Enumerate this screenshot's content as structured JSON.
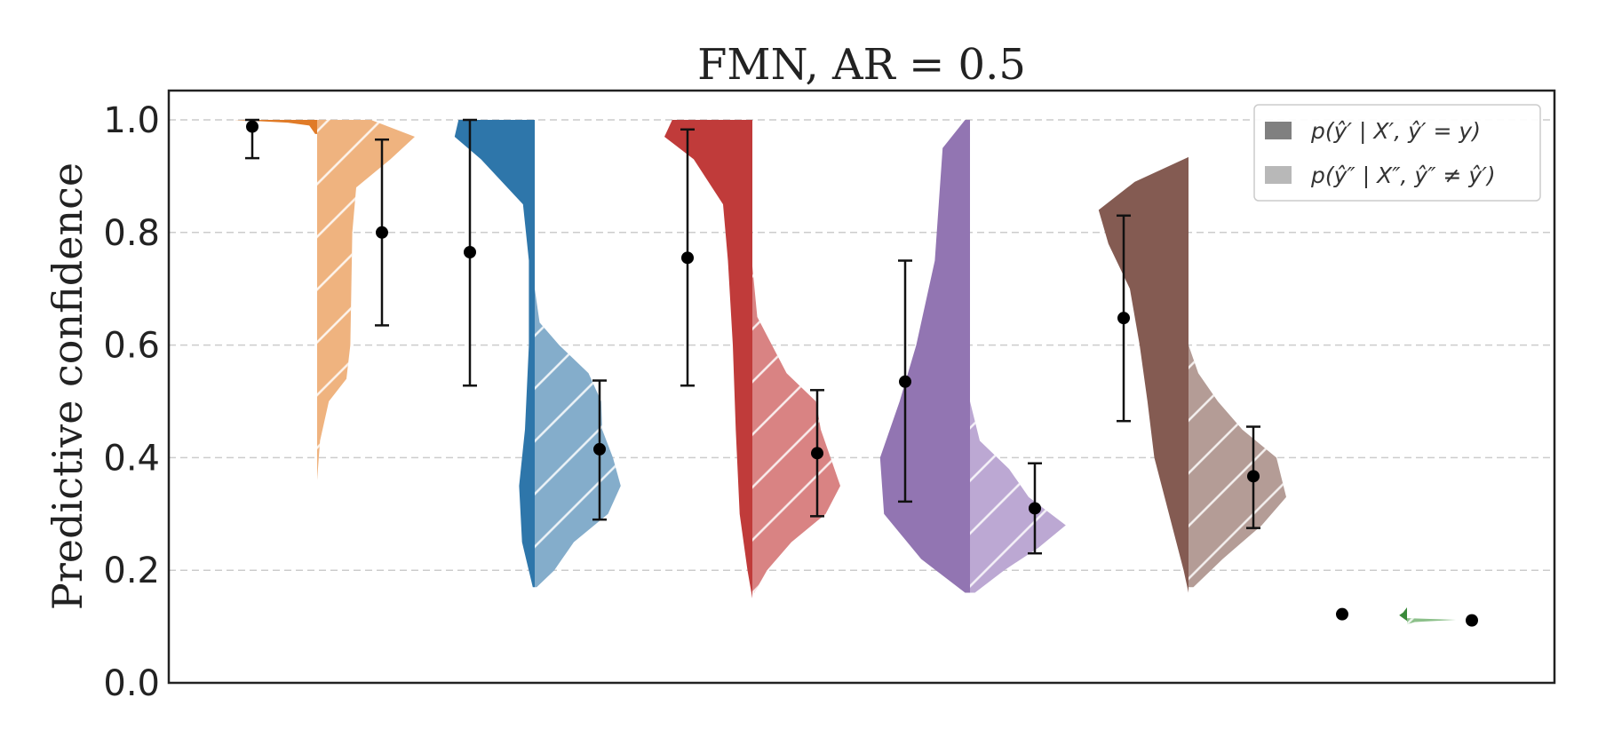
{
  "chart_data": {
    "type": "violin",
    "title": "FMN, AR = 0.5",
    "xlabel": "",
    "ylabel": "Predictive confidence",
    "ylim": [
      0.0,
      1.05
    ],
    "yticks": [
      0.0,
      0.2,
      0.4,
      0.6,
      0.8,
      1.0
    ],
    "ytick_labels": [
      "0.0",
      "0.2",
      "0.4",
      "0.6",
      "0.8",
      "1.0"
    ],
    "grid": "horizontal-dashed",
    "legend_position": "top-right",
    "legend": [
      {
        "label": "p(ŷ′ | X′, ŷ′ = y)",
        "color": "#808080"
      },
      {
        "label": "p(ŷ″ | X″, ŷ″ ≠ ŷ′)",
        "color": "#b8b8b8"
      }
    ],
    "groups": [
      {
        "color": "#e07b28",
        "light_color": "#efb37f",
        "correct": {
          "mean": 0.988,
          "low": 0.932,
          "high": 1.0,
          "density": [
            [
              1.0,
              0.85
            ],
            [
              0.995,
              0.3
            ],
            [
              0.99,
              0.08
            ],
            [
              0.975,
              0.02
            ]
          ]
        },
        "adversarial": {
          "mean": 0.8,
          "low": 0.635,
          "high": 0.965,
          "density": [
            [
              1.0,
              0.55
            ],
            [
              0.97,
              1.0
            ],
            [
              0.93,
              0.75
            ],
            [
              0.88,
              0.4
            ],
            [
              0.8,
              0.36
            ],
            [
              0.7,
              0.35
            ],
            [
              0.6,
              0.34
            ],
            [
              0.54,
              0.3
            ],
            [
              0.5,
              0.12
            ],
            [
              0.43,
              0.03
            ],
            [
              0.36,
              0.0
            ]
          ]
        }
      },
      {
        "color": "#2e76aa",
        "light_color": "#84adcb",
        "correct": {
          "mean": 0.765,
          "low": 0.528,
          "high": 1.0,
          "density": [
            [
              1.0,
              0.78
            ],
            [
              0.97,
              0.82
            ],
            [
              0.93,
              0.55
            ],
            [
              0.85,
              0.12
            ],
            [
              0.75,
              0.06
            ],
            [
              0.6,
              0.06
            ],
            [
              0.45,
              0.1
            ],
            [
              0.35,
              0.16
            ],
            [
              0.25,
              0.13
            ],
            [
              0.17,
              0.02
            ]
          ]
        },
        "adversarial": {
          "mean": 0.415,
          "low": 0.29,
          "high": 0.537,
          "density": [
            [
              0.7,
              0.0
            ],
            [
              0.64,
              0.05
            ],
            [
              0.6,
              0.25
            ],
            [
              0.55,
              0.55
            ],
            [
              0.5,
              0.68
            ],
            [
              0.45,
              0.69
            ],
            [
              0.4,
              0.8
            ],
            [
              0.35,
              0.88
            ],
            [
              0.3,
              0.75
            ],
            [
              0.25,
              0.4
            ],
            [
              0.2,
              0.2
            ],
            [
              0.17,
              0.02
            ]
          ]
        }
      },
      {
        "color": "#c03b3a",
        "light_color": "#d98383",
        "correct": {
          "mean": 0.755,
          "low": 0.528,
          "high": 0.983,
          "density": [
            [
              1.0,
              0.82
            ],
            [
              0.97,
              0.9
            ],
            [
              0.93,
              0.6
            ],
            [
              0.85,
              0.3
            ],
            [
              0.75,
              0.25
            ],
            [
              0.6,
              0.2
            ],
            [
              0.45,
              0.17
            ],
            [
              0.3,
              0.13
            ],
            [
              0.2,
              0.05
            ],
            [
              0.15,
              0.0
            ]
          ]
        },
        "adversarial": {
          "mean": 0.408,
          "low": 0.296,
          "high": 0.52,
          "density": [
            [
              0.74,
              0.0
            ],
            [
              0.65,
              0.05
            ],
            [
              0.55,
              0.35
            ],
            [
              0.5,
              0.65
            ],
            [
              0.45,
              0.7
            ],
            [
              0.4,
              0.8
            ],
            [
              0.35,
              0.9
            ],
            [
              0.3,
              0.75
            ],
            [
              0.25,
              0.4
            ],
            [
              0.2,
              0.15
            ],
            [
              0.16,
              0.02
            ]
          ]
        }
      },
      {
        "color": "#9275b2",
        "light_color": "#bca8d3",
        "correct": {
          "mean": 0.535,
          "low": 0.322,
          "high": 0.75,
          "density": [
            [
              1.0,
              0.05
            ],
            [
              0.95,
              0.28
            ],
            [
              0.85,
              0.32
            ],
            [
              0.75,
              0.36
            ],
            [
              0.6,
              0.55
            ],
            [
              0.5,
              0.72
            ],
            [
              0.4,
              0.92
            ],
            [
              0.3,
              0.88
            ],
            [
              0.22,
              0.5
            ],
            [
              0.16,
              0.05
            ]
          ]
        },
        "adversarial": {
          "mean": 0.31,
          "low": 0.23,
          "high": 0.39,
          "density": [
            [
              0.5,
              0.0
            ],
            [
              0.43,
              0.1
            ],
            [
              0.38,
              0.4
            ],
            [
              0.33,
              0.6
            ],
            [
              0.28,
              0.98
            ],
            [
              0.24,
              0.7
            ],
            [
              0.2,
              0.35
            ],
            [
              0.16,
              0.05
            ]
          ]
        }
      },
      {
        "color": "#845b52",
        "light_color": "#b49c96",
        "correct": {
          "mean": 0.648,
          "low": 0.465,
          "high": 0.83,
          "density": [
            [
              0.934,
              0.0
            ],
            [
              0.89,
              0.55
            ],
            [
              0.84,
              0.92
            ],
            [
              0.78,
              0.82
            ],
            [
              0.7,
              0.6
            ],
            [
              0.6,
              0.5
            ],
            [
              0.5,
              0.42
            ],
            [
              0.4,
              0.35
            ],
            [
              0.3,
              0.2
            ],
            [
              0.2,
              0.05
            ],
            [
              0.16,
              0.0
            ]
          ]
        },
        "adversarial": {
          "mean": 0.367,
          "low": 0.275,
          "high": 0.455,
          "density": [
            [
              0.6,
              0.0
            ],
            [
              0.55,
              0.1
            ],
            [
              0.5,
              0.3
            ],
            [
              0.45,
              0.55
            ],
            [
              0.4,
              0.9
            ],
            [
              0.33,
              1.0
            ],
            [
              0.28,
              0.75
            ],
            [
              0.22,
              0.35
            ],
            [
              0.17,
              0.05
            ]
          ]
        }
      },
      {
        "color": "#3a8a3a",
        "light_color": "#8cc08a",
        "correct": {
          "mean": 0.122,
          "low": 0.122,
          "high": 0.122,
          "density": [
            [
              0.134,
              0.0
            ],
            [
              0.125,
              0.04
            ],
            [
              0.12,
              0.08
            ],
            [
              0.115,
              0.04
            ],
            [
              0.11,
              0.0
            ]
          ]
        },
        "adversarial": {
          "mean": 0.111,
          "low": 0.111,
          "high": 0.111,
          "density": [
            [
              0.115,
              0.0
            ],
            [
              0.112,
              0.5
            ],
            [
              0.108,
              0.08
            ],
            [
              0.104,
              0.0
            ]
          ]
        }
      }
    ]
  }
}
